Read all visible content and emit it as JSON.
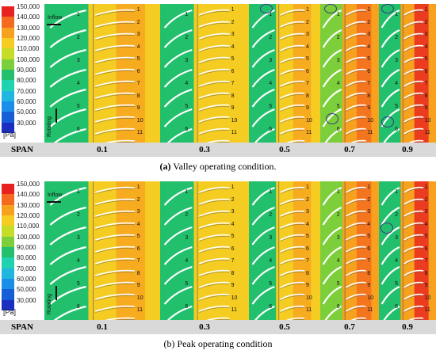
{
  "legend": {
    "unit": "[Pa]",
    "ticks": [
      "150,000",
      "140,000",
      "130,000",
      "120,000",
      "110,000",
      "100,000",
      "90,000",
      "80,000",
      "70,000",
      "60,000",
      "50,000",
      "30,000"
    ],
    "colors": [
      "#e8231f",
      "#f46a1f",
      "#f7a21f",
      "#f5cc22",
      "#c6dd28",
      "#7ccf3a",
      "#22c06c",
      "#1fd2b0",
      "#1fb7e0",
      "#1a8ee8",
      "#155ed8",
      "#1a2fc0"
    ]
  },
  "labels": {
    "inflow": "Inflow",
    "rotating": "Rotating"
  },
  "span": {
    "header": "SPAN",
    "values": [
      "0.1",
      "0.3",
      "0.5",
      "0.7",
      "0.9"
    ]
  },
  "blade_numbers_left": [
    "1",
    "2",
    "3",
    "4",
    "5",
    "6"
  ],
  "blade_numbers_right": [
    "1",
    "2",
    "3",
    "4",
    "5",
    "6",
    "7",
    "8",
    "9",
    "10",
    "11"
  ],
  "captions": {
    "a_prefix": "(a)",
    "a_text": " Valley operating condition.",
    "b_prefix": "(b)",
    "b_text": " Peak operating condition"
  }
}
